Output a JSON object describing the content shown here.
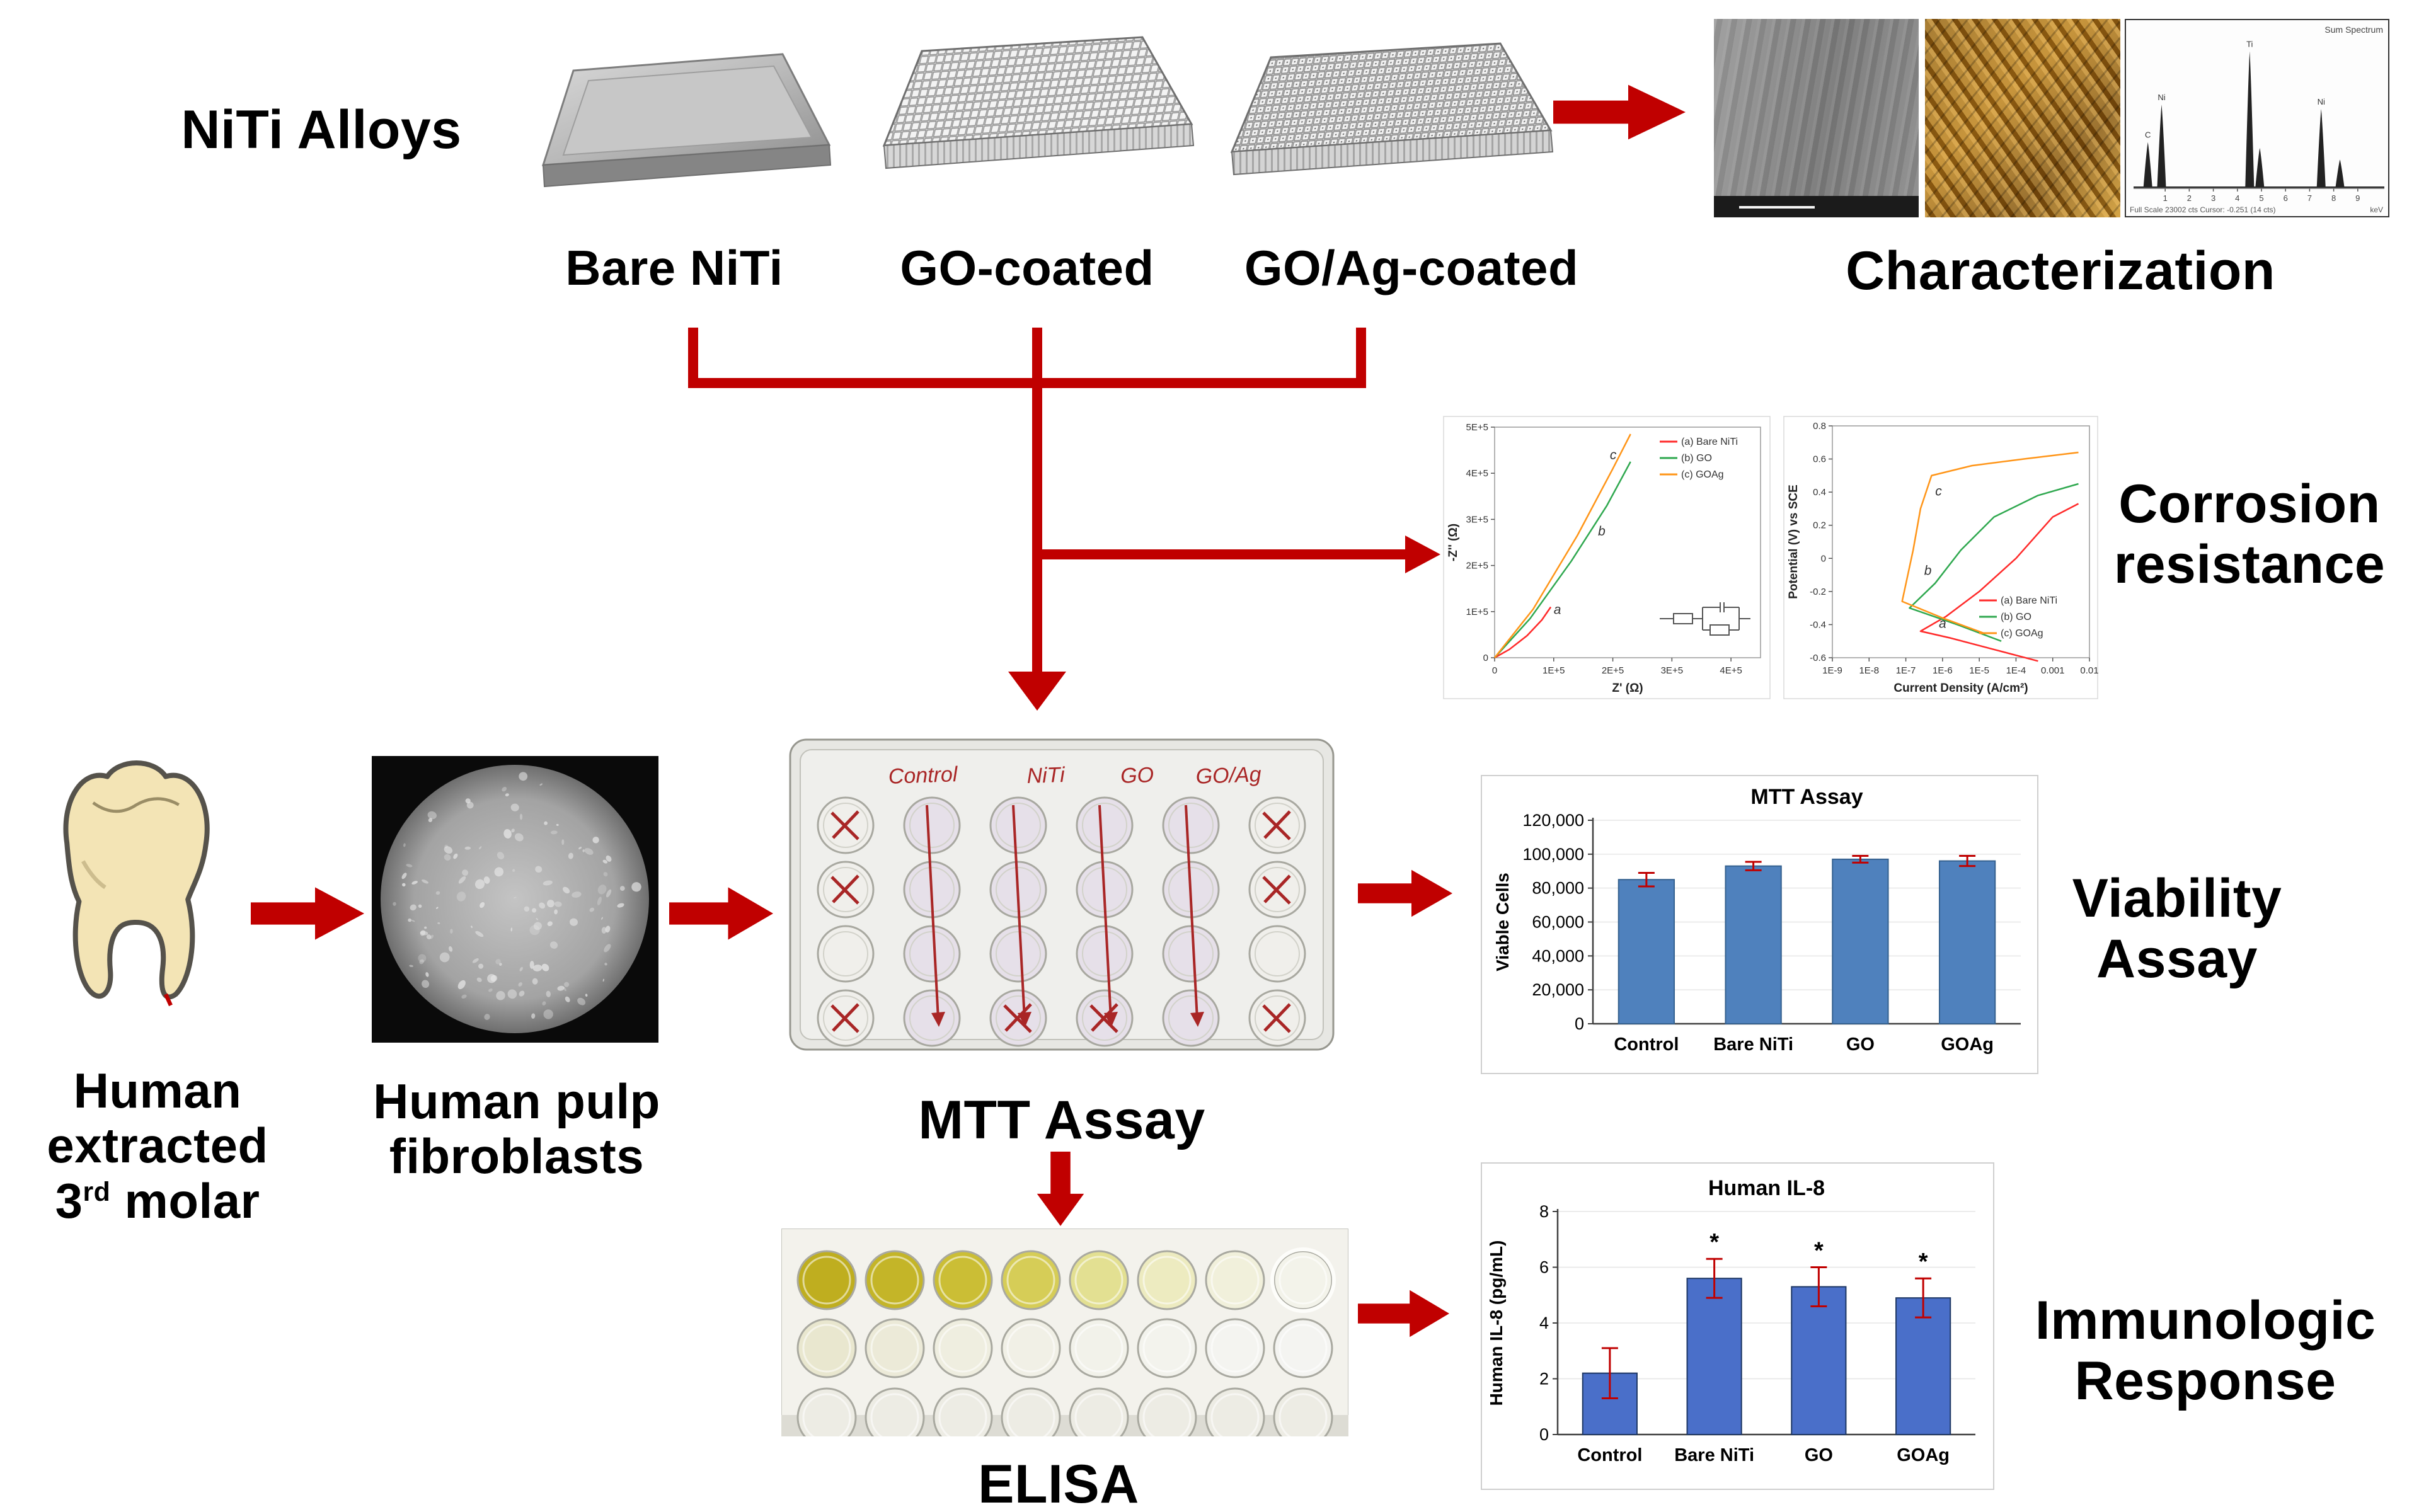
{
  "colors": {
    "arrow_red": "#C00000"
  },
  "top_row": {
    "group_label": "NiTi Alloys",
    "sample_labels": [
      "Bare NiTi",
      "GO-coated",
      "GO/Ag-coated"
    ],
    "characterization_label": "Characterization",
    "eds": {
      "corner_label": "Sum Spectrum",
      "caption": "Full Scale 23002 cts Cursor: -0.251 (14 cts)",
      "unit": "keV",
      "x_ticks": [
        1,
        2,
        3,
        4,
        5,
        6,
        7,
        8,
        9
      ],
      "peaks": [
        {
          "kev": 0.28,
          "rel_h": 0.32,
          "label": "C"
        },
        {
          "kev": 0.85,
          "rel_h": 0.58,
          "label": "Ni"
        },
        {
          "kev": 4.51,
          "rel_h": 0.95,
          "label": "Ti"
        },
        {
          "kev": 4.93,
          "rel_h": 0.28,
          "label": ""
        },
        {
          "kev": 7.48,
          "rel_h": 0.55,
          "label": "Ni"
        },
        {
          "kev": 8.26,
          "rel_h": 0.2,
          "label": ""
        }
      ]
    }
  },
  "corrosion": {
    "label_lines": [
      "Corrosion",
      "resistance"
    ]
  },
  "cell_row": {
    "tooth_label": {
      "line1": "Human",
      "line2": "extracted",
      "line3_base": "3",
      "line3_sup": "rd",
      "line3_rest": " molar"
    },
    "fibroblast_label": {
      "line1": "Human pulp",
      "line2": "fibroblasts"
    },
    "mtt_plate_label": "MTT Assay",
    "viability_label": {
      "line1": "Viability",
      "line2": "Assay"
    },
    "mtt_plate_annotations": {
      "column_labels": [
        "Control",
        "NiTi",
        "GO",
        "GO/Ag"
      ],
      "x_mark_wells": [
        [
          0,
          0
        ],
        [
          0,
          1
        ],
        [
          0,
          3
        ],
        [
          5,
          0
        ],
        [
          5,
          1
        ],
        [
          5,
          3
        ],
        [
          2,
          3
        ],
        [
          3,
          3
        ]
      ],
      "arrow_columns": [
        1,
        2,
        3,
        4
      ]
    }
  },
  "bottom_row": {
    "elisa_label": "ELISA",
    "immunologic_label": {
      "line1": "Immunologic",
      "line2": "Response"
    },
    "elisa_well_colors": {
      "row1": [
        "#bfae1f",
        "#c4b528",
        "#cbbe35",
        "#d6cd57",
        "#e3e092",
        "#edebc0",
        "#f1f0db",
        "#f3f3ea"
      ],
      "row2": [
        "#e9e7cf",
        "#ecead8",
        "#efeee0",
        "#f1f0e6",
        "#f2f2ea",
        "#f3f3ed",
        "#f4f4f0",
        "#f4f4f1"
      ]
    }
  },
  "chart_data": [
    {
      "id": "mtt_viability",
      "type": "bar",
      "title": "MTT Assay",
      "ylabel": "Viable Cells",
      "categories": [
        "Control",
        "Bare NiTi",
        "GO",
        "GOAg"
      ],
      "values": [
        85000,
        93000,
        97000,
        96000
      ],
      "errors": [
        4000,
        2500,
        2000,
        3000
      ],
      "sig": [
        "",
        "",
        "",
        ""
      ],
      "ylim": [
        0,
        120000
      ],
      "yticks": [
        0,
        20000,
        40000,
        60000,
        80000,
        100000,
        120000
      ],
      "bar_color": "#4F81BD",
      "bar_edge": "#35618F",
      "err_color": "#C00000",
      "grid": true,
      "legend": "none"
    },
    {
      "id": "human_il8",
      "type": "bar",
      "title": "Human IL-8",
      "ylabel": "Human IL-8 (pg/mL)",
      "categories": [
        "Control",
        "Bare NiTi",
        "GO",
        "GOAg"
      ],
      "values": [
        2.2,
        5.6,
        5.3,
        4.9
      ],
      "errors": [
        0.9,
        0.7,
        0.7,
        0.7
      ],
      "sig": [
        "",
        "*",
        "*",
        "*"
      ],
      "ylim": [
        0,
        8
      ],
      "yticks": [
        0,
        2,
        4,
        6,
        8
      ],
      "bar_color": "#4A6FC9",
      "bar_edge": "#1F3864",
      "err_color": "#C00000",
      "grid": true,
      "legend": "none"
    },
    {
      "id": "eis_nyquist",
      "type": "line",
      "title": "",
      "xlabel": "Z' (Ω)",
      "ylabel": "-Z'' (Ω)",
      "xlim": [
        0,
        450000
      ],
      "ylim": [
        0,
        500000
      ],
      "xticks": [
        {
          "v": 0,
          "t": "0"
        },
        {
          "v": 100000,
          "t": "1E+5"
        },
        {
          "v": 200000,
          "t": "2E+5"
        },
        {
          "v": 300000,
          "t": "3E+5"
        },
        {
          "v": 400000,
          "t": "4E+5"
        }
      ],
      "yticks": [
        {
          "v": 0,
          "t": "0"
        },
        {
          "v": 100000,
          "t": "1E+5"
        },
        {
          "v": 200000,
          "t": "2E+5"
        },
        {
          "v": 300000,
          "t": "3E+5"
        },
        {
          "v": 400000,
          "t": "4E+5"
        },
        {
          "v": 500000,
          "t": "5E+5"
        }
      ],
      "legend_pos": "top-right",
      "inset_circuit": true,
      "series": [
        {
          "name": "(a) Bare NiTi",
          "color": "#FF2A2A",
          "points": [
            [
              0,
              0
            ],
            [
              25000,
              18000
            ],
            [
              55000,
              48000
            ],
            [
              80000,
              82000
            ],
            [
              95000,
              110000
            ]
          ]
        },
        {
          "name": "(b) GO",
          "color": "#2FA84F",
          "points": [
            [
              0,
              0
            ],
            [
              60000,
              85000
            ],
            [
              130000,
              210000
            ],
            [
              190000,
              330000
            ],
            [
              230000,
              425000
            ]
          ]
        },
        {
          "name": "(c) GOAg",
          "color": "#FF9518",
          "points": [
            [
              0,
              0
            ],
            [
              65000,
              105000
            ],
            [
              140000,
              265000
            ],
            [
              200000,
              410000
            ],
            [
              230000,
              485000
            ]
          ]
        }
      ],
      "annotations": [
        {
          "t": "a",
          "x": 100000,
          "y": 95000
        },
        {
          "t": "b",
          "x": 175000,
          "y": 265000
        },
        {
          "t": "c",
          "x": 195000,
          "y": 430000
        }
      ]
    },
    {
      "id": "potentiodynamic_polarization",
      "type": "line",
      "title": "",
      "xlabel": "Current Density (A/cm²)",
      "ylabel": "Potential (V) vs SCE",
      "xlim": [
        -9,
        -2
      ],
      "ylim": [
        -0.6,
        0.8
      ],
      "xticks": [
        {
          "v": -9,
          "t": "1E-9"
        },
        {
          "v": -8,
          "t": "1E-8"
        },
        {
          "v": -7,
          "t": "1E-7"
        },
        {
          "v": -6,
          "t": "1E-6"
        },
        {
          "v": -5,
          "t": "1E-5"
        },
        {
          "v": -4,
          "t": "1E-4"
        },
        {
          "v": -3,
          "t": "0.001"
        },
        {
          "v": -2,
          "t": "0.01"
        }
      ],
      "yticks": [
        {
          "v": -0.6,
          "t": "-0.6"
        },
        {
          "v": -0.4,
          "t": "-0.4"
        },
        {
          "v": -0.2,
          "t": "-0.2"
        },
        {
          "v": 0,
          "t": "0"
        },
        {
          "v": 0.2,
          "t": "0.2"
        },
        {
          "v": 0.4,
          "t": "0.4"
        },
        {
          "v": 0.6,
          "t": "0.6"
        },
        {
          "v": 0.8,
          "t": "0.8"
        }
      ],
      "legend_pos": "bottom-right",
      "series": [
        {
          "name": "(a) Bare NiTi",
          "color": "#FF2A2A",
          "points": [
            [
              -3.4,
              -0.62
            ],
            [
              -4.6,
              -0.55
            ],
            [
              -5.8,
              -0.48
            ],
            [
              -6.6,
              -0.44
            ],
            [
              -5.9,
              -0.35
            ],
            [
              -5.0,
              -0.2
            ],
            [
              -4.0,
              0.0
            ],
            [
              -3.0,
              0.25
            ],
            [
              -2.3,
              0.33
            ]
          ]
        },
        {
          "name": "(b) GO",
          "color": "#2FA84F",
          "points": [
            [
              -4.4,
              -0.5
            ],
            [
              -5.6,
              -0.4
            ],
            [
              -6.9,
              -0.3
            ],
            [
              -6.2,
              -0.15
            ],
            [
              -5.5,
              0.05
            ],
            [
              -4.6,
              0.25
            ],
            [
              -3.4,
              0.38
            ],
            [
              -2.3,
              0.45
            ]
          ]
        },
        {
          "name": "(c) GOAg",
          "color": "#FF9518",
          "points": [
            [
              -4.9,
              -0.45
            ],
            [
              -6.0,
              -0.36
            ],
            [
              -7.1,
              -0.26
            ],
            [
              -6.8,
              0.05
            ],
            [
              -6.6,
              0.3
            ],
            [
              -6.3,
              0.5
            ],
            [
              -5.2,
              0.56
            ],
            [
              -3.8,
              0.6
            ],
            [
              -2.3,
              0.64
            ]
          ]
        }
      ],
      "annotations": [
        {
          "t": "a",
          "x": -6.1,
          "y": -0.42
        },
        {
          "t": "b",
          "x": -6.5,
          "y": -0.1
        },
        {
          "t": "c",
          "x": -6.2,
          "y": 0.38
        }
      ]
    }
  ]
}
